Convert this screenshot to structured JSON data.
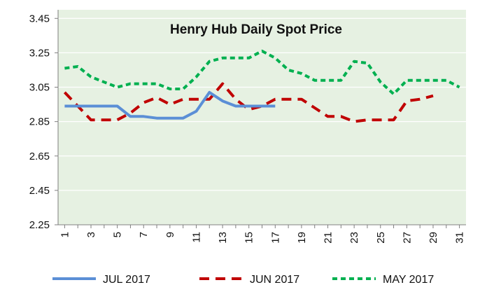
{
  "chart_data": {
    "type": "line",
    "title": "Henry Hub Daily Spot Price",
    "xlabel": "",
    "ylabel": "",
    "x": [
      1,
      2,
      3,
      4,
      5,
      6,
      7,
      8,
      9,
      10,
      11,
      12,
      13,
      14,
      15,
      16,
      17,
      18,
      19,
      20,
      21,
      22,
      23,
      24,
      25,
      26,
      27,
      28,
      29,
      30,
      31
    ],
    "x_tick_labels": [
      "1",
      "3",
      "5",
      "7",
      "9",
      "11",
      "13",
      "15",
      "17",
      "19",
      "21",
      "23",
      "25",
      "27",
      "29",
      "31"
    ],
    "y_tick_labels": [
      "2.25",
      "2.45",
      "2.65",
      "2.85",
      "3.05",
      "3.25",
      "3.45"
    ],
    "ylim": [
      2.25,
      3.5
    ],
    "xlim": [
      0.5,
      31.5
    ],
    "grid": "horizontal",
    "legend_position": "bottom",
    "plot_background": "#e6f1e2",
    "series": [
      {
        "name": "JUL 2017",
        "color": "#5b8fd6",
        "style": "solid",
        "values": [
          2.94,
          2.94,
          2.94,
          2.94,
          2.94,
          2.88,
          2.88,
          2.87,
          2.87,
          2.87,
          2.91,
          3.02,
          2.97,
          2.94,
          2.94,
          2.94,
          2.94,
          null,
          null,
          null,
          null,
          null,
          null,
          null,
          null,
          null,
          null,
          null,
          null,
          null,
          null
        ]
      },
      {
        "name": "JUN 2017",
        "color": "#c00000",
        "style": "dash",
        "values": [
          3.02,
          2.94,
          2.86,
          2.86,
          2.86,
          2.9,
          2.96,
          2.99,
          2.95,
          2.98,
          2.98,
          2.98,
          3.07,
          2.98,
          2.92,
          2.94,
          2.98,
          2.98,
          2.98,
          2.93,
          2.88,
          2.88,
          2.85,
          2.86,
          2.86,
          2.86,
          2.97,
          2.98,
          3.0,
          null,
          null
        ]
      },
      {
        "name": "MAY 2017",
        "color": "#00b050",
        "style": "dot",
        "values": [
          3.16,
          3.17,
          3.11,
          3.08,
          3.05,
          3.07,
          3.07,
          3.07,
          3.04,
          3.04,
          3.11,
          3.2,
          3.22,
          3.22,
          3.22,
          3.26,
          3.22,
          3.15,
          3.13,
          3.09,
          3.09,
          3.09,
          3.2,
          3.19,
          3.08,
          3.01,
          3.09,
          3.09,
          3.09,
          3.09,
          3.05
        ]
      }
    ]
  }
}
